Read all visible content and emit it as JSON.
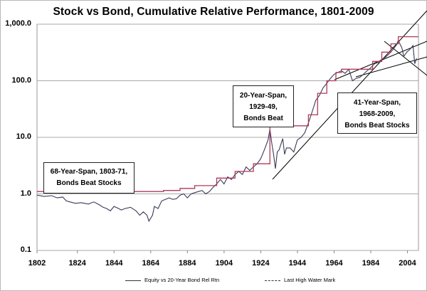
{
  "chart_data": {
    "type": "line",
    "title": "Stock vs Bond, Cumulative Relative Performance, 1801-2009",
    "yscale": "log",
    "ylim": [
      0.1,
      1000
    ],
    "xlim": [
      1802,
      2010
    ],
    "y_ticks": [
      "0.1",
      "1.0",
      "10.0",
      "100.0",
      "1,000.0"
    ],
    "y_tick_values": [
      0.1,
      1,
      10,
      100,
      1000
    ],
    "x_ticks": [
      "1802",
      "1824",
      "1844",
      "1864",
      "1884",
      "1904",
      "1924",
      "1944",
      "1964",
      "1984",
      "2004"
    ],
    "x_tick_values": [
      1802,
      1824,
      1844,
      1864,
      1884,
      1904,
      1924,
      1944,
      1964,
      1984,
      2004
    ],
    "grid": true,
    "series": [
      {
        "name": "Equity vs 20-Year Bond Rel Rtn",
        "style": "solid",
        "color": "#3a3a58",
        "x": [
          1802,
          1806,
          1810,
          1813,
          1816,
          1818,
          1820,
          1823,
          1826,
          1830,
          1833,
          1836,
          1838,
          1840,
          1842,
          1844,
          1846,
          1848,
          1850,
          1853,
          1856,
          1858,
          1860,
          1862,
          1863,
          1865,
          1866,
          1868,
          1870,
          1872,
          1874,
          1876,
          1878,
          1880,
          1882,
          1884,
          1886,
          1888,
          1890,
          1892,
          1894,
          1896,
          1898,
          1900,
          1902,
          1904,
          1906,
          1908,
          1910,
          1912,
          1914,
          1916,
          1918,
          1920,
          1922,
          1924,
          1926,
          1928,
          1929,
          1930,
          1931,
          1932,
          1933,
          1934,
          1936,
          1937,
          1938,
          1940,
          1942,
          1944,
          1946,
          1948,
          1950,
          1952,
          1954,
          1956,
          1958,
          1960,
          1962,
          1964,
          1966,
          1968,
          1970,
          1972,
          1974,
          1976,
          1978,
          1980,
          1982,
          1984,
          1986,
          1988,
          1990,
          1992,
          1994,
          1996,
          1998,
          1999,
          2000,
          2001,
          2002,
          2003,
          2004,
          2005,
          2006,
          2007,
          2008,
          2009
        ],
        "values": [
          0.95,
          0.9,
          0.93,
          0.85,
          0.88,
          0.75,
          0.72,
          0.68,
          0.7,
          0.66,
          0.72,
          0.64,
          0.58,
          0.55,
          0.5,
          0.6,
          0.56,
          0.52,
          0.55,
          0.58,
          0.5,
          0.42,
          0.48,
          0.42,
          0.33,
          0.42,
          0.6,
          0.55,
          0.75,
          0.8,
          0.85,
          0.8,
          0.82,
          0.95,
          1.0,
          0.85,
          1.0,
          1.05,
          1.1,
          1.15,
          1.0,
          1.1,
          1.3,
          1.5,
          1.8,
          1.5,
          2.0,
          1.8,
          2.2,
          2.5,
          2.2,
          3.0,
          2.6,
          3.0,
          3.4,
          4.2,
          6.0,
          9.0,
          14.0,
          8.0,
          5.0,
          2.8,
          5.5,
          6.0,
          9.5,
          5.0,
          6.5,
          6.5,
          5.5,
          9.0,
          10.0,
          12.0,
          18.0,
          28.0,
          45.0,
          55.0,
          75.0,
          90.0,
          110.0,
          130.0,
          140.0,
          150.0,
          135.0,
          160.0,
          100.0,
          110.0,
          115.0,
          130.0,
          150.0,
          170.0,
          200.0,
          210.0,
          240.0,
          260.0,
          300.0,
          350.0,
          430.0,
          520.0,
          440.0,
          380.0,
          270.0,
          300.0,
          330.0,
          350.0,
          380.0,
          420.0,
          200.0,
          250.0
        ]
      },
      {
        "name": "Last High Water Mark",
        "style": "dashed",
        "color": "#b03a5a",
        "x": [
          1802,
          1871,
          1871,
          1880,
          1880,
          1888,
          1888,
          1900,
          1900,
          1910,
          1910,
          1920,
          1920,
          1929,
          1929,
          1950,
          1950,
          1955,
          1955,
          1960,
          1960,
          1965,
          1965,
          1968,
          1968,
          1985,
          1985,
          1990,
          1990,
          1995,
          1995,
          1999,
          1999,
          2010
        ],
        "values": [
          1.1,
          1.1,
          1.15,
          1.15,
          1.25,
          1.25,
          1.4,
          1.4,
          1.9,
          1.9,
          2.5,
          2.5,
          3.4,
          3.4,
          16.0,
          16.0,
          25.0,
          25.0,
          60.0,
          60.0,
          100.0,
          100.0,
          140.0,
          140.0,
          160.0,
          160.0,
          220.0,
          220.0,
          320.0,
          320.0,
          450.0,
          450.0,
          600.0,
          600.0
        ]
      }
    ],
    "annotations": [
      {
        "lines": [
          "68-Year-Span,  1803-71,",
          "Bonds Beat Stocks"
        ]
      },
      {
        "lines": [
          "20-Year-Span,",
          "1929-49,",
          "Bonds Beat"
        ]
      },
      {
        "lines": [
          "41-Year-Span,",
          "1968-2009,",
          "Bonds Beat Stocks"
        ]
      }
    ]
  },
  "legend": {
    "solid_label": "Equity vs 20-Year Bond Rel Rtn",
    "dashed_label": "Last High Water Mark"
  }
}
